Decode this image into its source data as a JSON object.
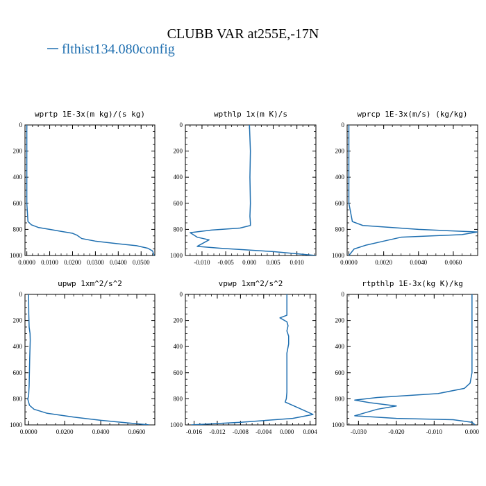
{
  "figure": {
    "title": "CLUBB VAR at255E,-17N",
    "legend": [
      {
        "label": "flthist134.080config",
        "color": "#1f6fb0"
      }
    ]
  },
  "chart_data": [
    {
      "type": "line",
      "title": "wprtp  1E-3x(m kg)/(s kg)",
      "xlim": [
        -0.0008,
        0.056
      ],
      "ylim": [
        1000,
        0
      ],
      "xticks": [
        0.0,
        0.01,
        0.02,
        0.03,
        0.04,
        0.05
      ],
      "xtick_labels": [
        "0.0000",
        "0.0100",
        "0.0200",
        "0.0300",
        "0.0400",
        "0.0500"
      ],
      "yticks": [
        0,
        200,
        400,
        600,
        800,
        1000
      ],
      "ytick_labels": [
        "0",
        "200",
        "400",
        "600",
        "800",
        "1000"
      ],
      "series": [
        {
          "color": "#1f6fb0",
          "x": [
            0.0,
            0.0,
            0.0,
            0.0,
            0.0005,
            0.002,
            0.005,
            0.01,
            0.015,
            0.02,
            0.022,
            0.024,
            0.03,
            0.04,
            0.048,
            0.053,
            0.055,
            0.0557
          ],
          "y": [
            0,
            200,
            400,
            600,
            740,
            765,
            785,
            800,
            815,
            830,
            845,
            870,
            890,
            910,
            925,
            945,
            965,
            1000
          ]
        }
      ]
    },
    {
      "type": "line",
      "title": "wpthlp  1x(m K)/s",
      "xlim": [
        -0.0135,
        0.014
      ],
      "ylim": [
        1000,
        0
      ],
      "xticks": [
        -0.01,
        -0.005,
        0.0,
        0.005,
        0.01
      ],
      "xtick_labels": [
        "-0.010",
        "-0.005",
        "0.000",
        "0.005",
        "0.010"
      ],
      "yticks": [
        0,
        200,
        400,
        600,
        800,
        1000
      ],
      "ytick_labels": [
        "0",
        "200",
        "400",
        "600",
        "800",
        "1000"
      ],
      "series": [
        {
          "color": "#1f6fb0",
          "x": [
            0.0,
            0.0002,
            0.0001,
            0.0002,
            0.0001,
            0.0002,
            0.0002,
            -0.002,
            -0.008,
            -0.0125,
            -0.011,
            -0.0085,
            -0.011,
            -0.006,
            0.005,
            0.014
          ],
          "y": [
            0,
            200,
            400,
            600,
            700,
            750,
            770,
            790,
            805,
            825,
            860,
            880,
            930,
            945,
            970,
            1000
          ]
        }
      ]
    },
    {
      "type": "line",
      "title": "wprcp  1E-3x(m/s) (kg/kg)",
      "xlim": [
        -0.0001,
        0.0074
      ],
      "ylim": [
        1000,
        0
      ],
      "xticks": [
        0.0,
        0.002,
        0.004,
        0.006
      ],
      "xtick_labels": [
        "0.0000",
        "0.0020",
        "0.0040",
        "0.0060"
      ],
      "yticks": [
        0,
        200,
        400,
        600,
        800,
        1000
      ],
      "ytick_labels": [
        "0",
        "200",
        "400",
        "600",
        "800",
        "1000"
      ],
      "series": [
        {
          "color": "#1f6fb0",
          "x": [
            0.0,
            0.0,
            0.0,
            0.0,
            0.0002,
            0.0008,
            0.004,
            0.0074,
            0.0065,
            0.003,
            0.002,
            0.001,
            0.0003,
            0.0
          ],
          "y": [
            0,
            200,
            400,
            600,
            740,
            770,
            800,
            820,
            840,
            860,
            890,
            920,
            950,
            1000
          ]
        }
      ]
    },
    {
      "type": "line",
      "title": "upwp  1xm^2/s^2",
      "xlim": [
        -0.002,
        0.07
      ],
      "ylim": [
        1000,
        0
      ],
      "xticks": [
        0.0,
        0.02,
        0.04,
        0.06
      ],
      "xtick_labels": [
        "0.0000",
        "0.0200",
        "0.0400",
        "0.0600"
      ],
      "yticks": [
        0,
        200,
        400,
        600,
        800,
        1000
      ],
      "ytick_labels": [
        "0",
        "200",
        "400",
        "600",
        "800",
        "1000"
      ],
      "series": [
        {
          "color": "#1f6fb0",
          "x": [
            0.0,
            0.0001,
            0.0003,
            0.0008,
            0.0009,
            0.0006,
            0.0003,
            0.0,
            -0.0005,
            0.0005,
            0.003,
            0.01,
            0.025,
            0.04,
            0.055,
            0.067
          ],
          "y": [
            0,
            150,
            250,
            300,
            350,
            500,
            700,
            780,
            800,
            850,
            880,
            910,
            940,
            965,
            985,
            1000
          ]
        }
      ]
    },
    {
      "type": "line",
      "title": "vpwp  1xm^2/s^2",
      "xlim": [
        -0.0175,
        0.005
      ],
      "ylim": [
        1000,
        0
      ],
      "xticks": [
        -0.016,
        -0.012,
        -0.008,
        -0.004,
        0.0,
        0.004
      ],
      "xtick_labels": [
        "-0.016",
        "-0.012",
        "-0.008",
        "-0.004",
        "0.000",
        "0.004"
      ],
      "yticks": [
        0,
        200,
        400,
        600,
        800,
        1000
      ],
      "ytick_labels": [
        "0",
        "200",
        "400",
        "600",
        "800",
        "1000"
      ],
      "series": [
        {
          "color": "#1f6fb0",
          "x": [
            0.0,
            0.0,
            -0.0012,
            0.0,
            0.0002,
            0.0,
            0.0003,
            0.0003,
            0.0,
            0.0,
            0.0,
            -0.0001,
            -0.0003,
            0.002,
            0.0045,
            0.001,
            -0.008,
            -0.0165
          ],
          "y": [
            0,
            160,
            180,
            210,
            240,
            280,
            320,
            380,
            450,
            600,
            750,
            800,
            825,
            870,
            920,
            950,
            980,
            1000
          ]
        }
      ]
    },
    {
      "type": "line",
      "title": "rtpthlp  1E-3x(kg K)/kg",
      "xlim": [
        -0.033,
        0.0015
      ],
      "ylim": [
        1000,
        0
      ],
      "xticks": [
        -0.03,
        -0.02,
        -0.01,
        0.0
      ],
      "xtick_labels": [
        "-0.030",
        "-0.020",
        "-0.010",
        "0.000"
      ],
      "yticks": [
        0,
        200,
        400,
        600,
        800,
        1000
      ],
      "ytick_labels": [
        "0",
        "200",
        "400",
        "600",
        "800",
        "1000"
      ],
      "series": [
        {
          "color": "#1f6fb0",
          "x": [
            0.0,
            0.0,
            0.0,
            -0.0005,
            -0.002,
            -0.009,
            -0.025,
            -0.031,
            -0.027,
            -0.02,
            -0.025,
            -0.031,
            -0.02,
            -0.005,
            0.0,
            0.0008
          ],
          "y": [
            0,
            300,
            600,
            680,
            720,
            760,
            790,
            810,
            830,
            855,
            880,
            930,
            950,
            960,
            980,
            1000
          ]
        }
      ]
    }
  ]
}
